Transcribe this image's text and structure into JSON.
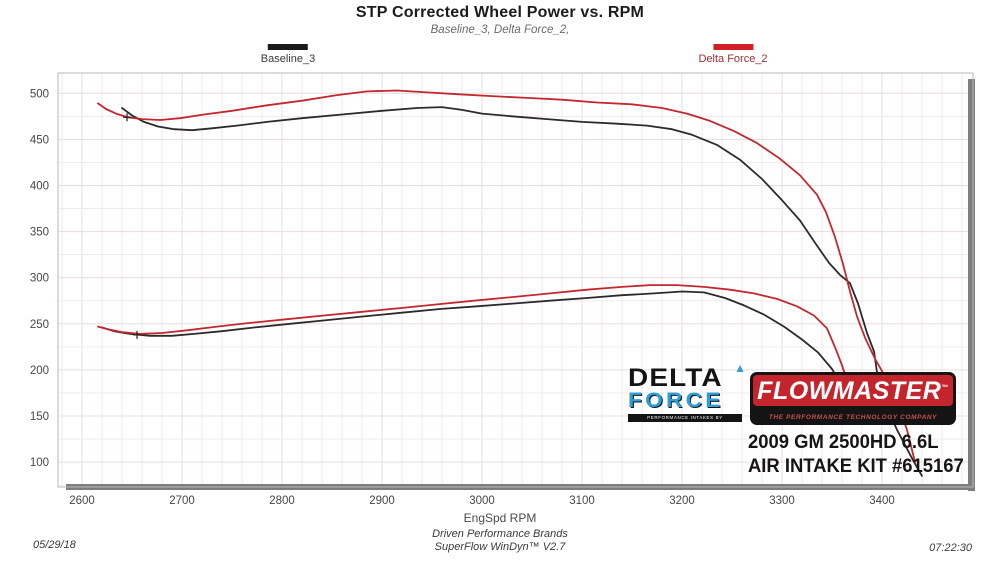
{
  "page": {
    "title": "STP Corrected Wheel Power vs. RPM",
    "subtitle": "Baseline_3, Delta Force_2,",
    "footer_left": "05/29/18",
    "footer_center_line1": "Driven Performance Brands",
    "footer_center_line2": "SuperFlow WinDyn™ V2.7",
    "footer_right": "07:22:30"
  },
  "legend": [
    {
      "label": "Baseline_3",
      "color": "#1a1a1a"
    },
    {
      "label": "Delta Force_2",
      "color": "#d22027"
    }
  ],
  "logos": {
    "delta_force": {
      "line1": "DELTA",
      "triangle_glyph": "▲",
      "line2": "FORCE",
      "tagline": "PERFORMANCE INTAKES BY FLOWMASTER",
      "blue": "#2e9fd6"
    },
    "flowmaster": {
      "name": "FLOWMASTER",
      "tm": "™",
      "tagline": "THE PERFORMANCE TECHNOLOGY COMPANY",
      "red": "#c4242c"
    },
    "vehicle_box": {
      "line1": "2009 GM 2500HD 6.6L",
      "line2": "AIR INTAKE KIT #615167"
    }
  },
  "chart_data": {
    "type": "line",
    "title": "STP Corrected Wheel Power vs. RPM",
    "xlabel": "EngSpd  RPM",
    "ylabel": "",
    "xlim": [
      2576,
      3491
    ],
    "ylim": [
      73,
      522
    ],
    "x_ticks": [
      2600,
      2700,
      2800,
      2900,
      3000,
      3100,
      3200,
      3300,
      3400
    ],
    "y_ticks": [
      100,
      150,
      200,
      250,
      300,
      350,
      400,
      450,
      500
    ],
    "grid": {
      "minor_x": 20,
      "major_x": 100,
      "minor_y": 25,
      "major_y": 50,
      "minor_color": "#f3eaea",
      "major_color": "#e9dcdc",
      "on": true
    },
    "legend_position": "top",
    "frame_color": "#b8b8b8",
    "shadow_color": "#7e7e7e",
    "markers": [
      {
        "rpm": 2645,
        "value": 474
      },
      {
        "rpm": 2655,
        "value": 238
      }
    ],
    "series": [
      {
        "id": "baseline3-power",
        "name": "Baseline_3 (upper trace)",
        "color": "#2b2b2b",
        "points": [
          [
            2640,
            484
          ],
          [
            2650,
            476
          ],
          [
            2662,
            469
          ],
          [
            2676,
            464
          ],
          [
            2692,
            461
          ],
          [
            2710,
            460
          ],
          [
            2730,
            462
          ],
          [
            2755,
            465
          ],
          [
            2785,
            469
          ],
          [
            2820,
            473
          ],
          [
            2860,
            477
          ],
          [
            2900,
            481
          ],
          [
            2935,
            484
          ],
          [
            2960,
            485
          ],
          [
            2980,
            482
          ],
          [
            3000,
            478
          ],
          [
            3030,
            475
          ],
          [
            3065,
            472
          ],
          [
            3100,
            469
          ],
          [
            3135,
            467
          ],
          [
            3165,
            465
          ],
          [
            3190,
            461
          ],
          [
            3210,
            455
          ],
          [
            3235,
            444
          ],
          [
            3258,
            428
          ],
          [
            3280,
            407
          ],
          [
            3300,
            384
          ],
          [
            3318,
            362
          ],
          [
            3333,
            338
          ],
          [
            3347,
            316
          ],
          [
            3358,
            303
          ],
          [
            3368,
            294
          ],
          [
            3376,
            272
          ],
          [
            3385,
            240
          ],
          [
            3392,
            220
          ],
          [
            3398,
            175
          ],
          [
            3415,
            135
          ],
          [
            3432,
            100
          ],
          [
            3440,
            85
          ]
        ]
      },
      {
        "id": "deltaforce2-power",
        "name": "Delta Force_2 (upper trace)",
        "color": "#c22830",
        "points": [
          [
            2616,
            489
          ],
          [
            2624,
            483
          ],
          [
            2634,
            478
          ],
          [
            2646,
            474
          ],
          [
            2660,
            472
          ],
          [
            2678,
            471
          ],
          [
            2698,
            473
          ],
          [
            2722,
            477
          ],
          [
            2750,
            481
          ],
          [
            2785,
            487
          ],
          [
            2820,
            492
          ],
          [
            2855,
            498
          ],
          [
            2885,
            502
          ],
          [
            2915,
            503
          ],
          [
            2945,
            501
          ],
          [
            2975,
            499
          ],
          [
            3010,
            497
          ],
          [
            3045,
            495
          ],
          [
            3080,
            493
          ],
          [
            3115,
            490
          ],
          [
            3150,
            488
          ],
          [
            3180,
            484
          ],
          [
            3205,
            478
          ],
          [
            3228,
            470
          ],
          [
            3252,
            459
          ],
          [
            3275,
            446
          ],
          [
            3298,
            429
          ],
          [
            3318,
            411
          ],
          [
            3335,
            390
          ],
          [
            3344,
            371
          ],
          [
            3353,
            344
          ],
          [
            3361,
            315
          ],
          [
            3368,
            285
          ],
          [
            3375,
            258
          ],
          [
            3383,
            235
          ],
          [
            3393,
            212
          ],
          [
            3403,
            193
          ],
          [
            3412,
            175
          ],
          [
            3425,
            135
          ],
          [
            3433,
            100
          ]
        ]
      },
      {
        "id": "baseline3-lower",
        "name": "Baseline_3 (lower trace)",
        "color": "#2b2b2b",
        "points": [
          [
            2620,
            246
          ],
          [
            2632,
            242
          ],
          [
            2648,
            239
          ],
          [
            2668,
            237
          ],
          [
            2690,
            237
          ],
          [
            2712,
            239
          ],
          [
            2740,
            242
          ],
          [
            2772,
            246
          ],
          [
            2808,
            250
          ],
          [
            2845,
            254
          ],
          [
            2882,
            258
          ],
          [
            2920,
            262
          ],
          [
            2958,
            266
          ],
          [
            2995,
            269
          ],
          [
            3032,
            272
          ],
          [
            3068,
            275
          ],
          [
            3105,
            278
          ],
          [
            3140,
            281
          ],
          [
            3172,
            283
          ],
          [
            3200,
            285
          ],
          [
            3222,
            284
          ],
          [
            3243,
            278
          ],
          [
            3262,
            270
          ],
          [
            3282,
            260
          ],
          [
            3302,
            247
          ],
          [
            3320,
            233
          ],
          [
            3336,
            219
          ],
          [
            3350,
            201
          ],
          [
            3356,
            190
          ]
        ]
      },
      {
        "id": "deltaforce2-lower",
        "name": "Delta Force_2 (lower trace)",
        "color": "#c22830",
        "points": [
          [
            2616,
            247
          ],
          [
            2626,
            244
          ],
          [
            2640,
            241
          ],
          [
            2658,
            239
          ],
          [
            2680,
            240
          ],
          [
            2705,
            243
          ],
          [
            2735,
            247
          ],
          [
            2768,
            251
          ],
          [
            2805,
            255
          ],
          [
            2842,
            259
          ],
          [
            2880,
            263
          ],
          [
            2918,
            267
          ],
          [
            2955,
            271
          ],
          [
            2992,
            275
          ],
          [
            3030,
            279
          ],
          [
            3068,
            283
          ],
          [
            3105,
            287
          ],
          [
            3140,
            290
          ],
          [
            3168,
            292
          ],
          [
            3195,
            292
          ],
          [
            3222,
            290
          ],
          [
            3248,
            287
          ],
          [
            3272,
            283
          ],
          [
            3295,
            277
          ],
          [
            3315,
            269
          ],
          [
            3332,
            259
          ],
          [
            3345,
            245
          ],
          [
            3354,
            222
          ],
          [
            3360,
            205
          ],
          [
            3364,
            192
          ]
        ]
      }
    ]
  }
}
